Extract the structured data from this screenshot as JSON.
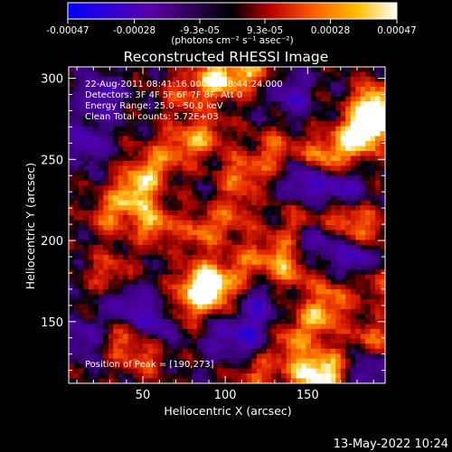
{
  "chart_data": {
    "type": "heatmap",
    "title": "Reconstructed RHESSI Image",
    "xlabel": "Heliocentric X (arcsec)",
    "ylabel": "Heliocentric Y (arcsec)",
    "xlim": [
      5,
      197
    ],
    "ylim": [
      112,
      307
    ],
    "x_ticks": [
      50,
      100,
      150
    ],
    "y_ticks": [
      150,
      200,
      250,
      300
    ],
    "colorbar": {
      "ticks": [
        -0.00047,
        -0.00028,
        -9.3e-05,
        9.3e-05,
        0.00028,
        0.00047
      ],
      "tick_labels": [
        "-0.00047",
        "-0.00028",
        "-9.3e-05",
        "9.3e-05",
        "0.00028",
        "0.00047"
      ],
      "label": "(photons cm⁻² s⁻¹ asec⁻²)",
      "colors": [
        "#0000ff",
        "#5a00a8",
        "#000000",
        "#c00000",
        "#ff6000",
        "#ffc000",
        "#ffffff"
      ]
    },
    "annotations": [
      "22-Aug-2011 08:41:16.000 to 08:44:24.000",
      "Detectors: 3F 4F 5F 6F 7F 8F, Att 0",
      "Energy Range: 25.0 - 50.0 keV",
      "Clean     Total counts: 5.72E+03"
    ],
    "peak_label": "Position of Peak = [190,273]",
    "peak_position": [
      190,
      273
    ],
    "bright_regions": [
      {
        "x": 72,
        "y": 258,
        "level": 0.55
      },
      {
        "x": 55,
        "y": 245,
        "level": 0.6
      },
      {
        "x": 45,
        "y": 230,
        "level": 0.85
      },
      {
        "x": 30,
        "y": 215,
        "level": 0.6
      },
      {
        "x": 57,
        "y": 210,
        "level": 0.75
      },
      {
        "x": 88,
        "y": 265,
        "level": 0.55
      },
      {
        "x": 110,
        "y": 240,
        "level": 0.65
      },
      {
        "x": 130,
        "y": 255,
        "level": 0.55
      },
      {
        "x": 85,
        "y": 205,
        "level": 0.55
      },
      {
        "x": 105,
        "y": 215,
        "level": 0.5
      },
      {
        "x": 95,
        "y": 300,
        "level": 0.95
      },
      {
        "x": 115,
        "y": 304,
        "level": 0.7
      },
      {
        "x": 75,
        "y": 290,
        "level": 0.5
      },
      {
        "x": 158,
        "y": 250,
        "level": 0.85
      },
      {
        "x": 178,
        "y": 262,
        "level": 0.95
      },
      {
        "x": 190,
        "y": 273,
        "level": 1.0
      },
      {
        "x": 190,
        "y": 285,
        "level": 0.8
      },
      {
        "x": 170,
        "y": 215,
        "level": 0.65
      },
      {
        "x": 185,
        "y": 205,
        "level": 0.6
      },
      {
        "x": 145,
        "y": 210,
        "level": 0.45
      },
      {
        "x": 85,
        "y": 175,
        "level": 0.85
      },
      {
        "x": 95,
        "y": 168,
        "level": 0.8
      },
      {
        "x": 75,
        "y": 158,
        "level": 0.55
      },
      {
        "x": 110,
        "y": 185,
        "level": 0.5
      },
      {
        "x": 130,
        "y": 192,
        "level": 0.55
      },
      {
        "x": 140,
        "y": 180,
        "level": 0.5
      },
      {
        "x": 155,
        "y": 150,
        "level": 0.7
      },
      {
        "x": 165,
        "y": 165,
        "level": 0.55
      },
      {
        "x": 135,
        "y": 138,
        "level": 0.6
      },
      {
        "x": 150,
        "y": 120,
        "level": 0.85
      },
      {
        "x": 165,
        "y": 118,
        "level": 0.75
      },
      {
        "x": 120,
        "y": 118,
        "level": 0.5
      },
      {
        "x": 50,
        "y": 128,
        "level": 0.5
      },
      {
        "x": 35,
        "y": 140,
        "level": 0.45
      },
      {
        "x": 30,
        "y": 180,
        "level": 0.5
      },
      {
        "x": 188,
        "y": 140,
        "level": 0.55
      },
      {
        "x": 193,
        "y": 175,
        "level": 0.45
      }
    ],
    "dim_regions": [
      {
        "x": 150,
        "y": 238,
        "level": -0.8
      },
      {
        "x": 170,
        "y": 230,
        "level": -0.7
      },
      {
        "x": 155,
        "y": 200,
        "level": -0.6
      },
      {
        "x": 180,
        "y": 190,
        "level": -0.75
      },
      {
        "x": 120,
        "y": 160,
        "level": -0.5
      },
      {
        "x": 120,
        "y": 140,
        "level": -0.55
      },
      {
        "x": 60,
        "y": 150,
        "level": -0.6
      },
      {
        "x": 40,
        "y": 160,
        "level": -0.55
      },
      {
        "x": 15,
        "y": 140,
        "level": -0.5
      },
      {
        "x": 15,
        "y": 260,
        "level": -0.55
      },
      {
        "x": 25,
        "y": 290,
        "level": -0.6
      },
      {
        "x": 140,
        "y": 290,
        "level": -0.55
      },
      {
        "x": 100,
        "y": 140,
        "level": -0.5
      },
      {
        "x": 185,
        "y": 120,
        "level": -0.55
      }
    ]
  },
  "footer": {
    "date": "13-May-2022 10:24"
  }
}
